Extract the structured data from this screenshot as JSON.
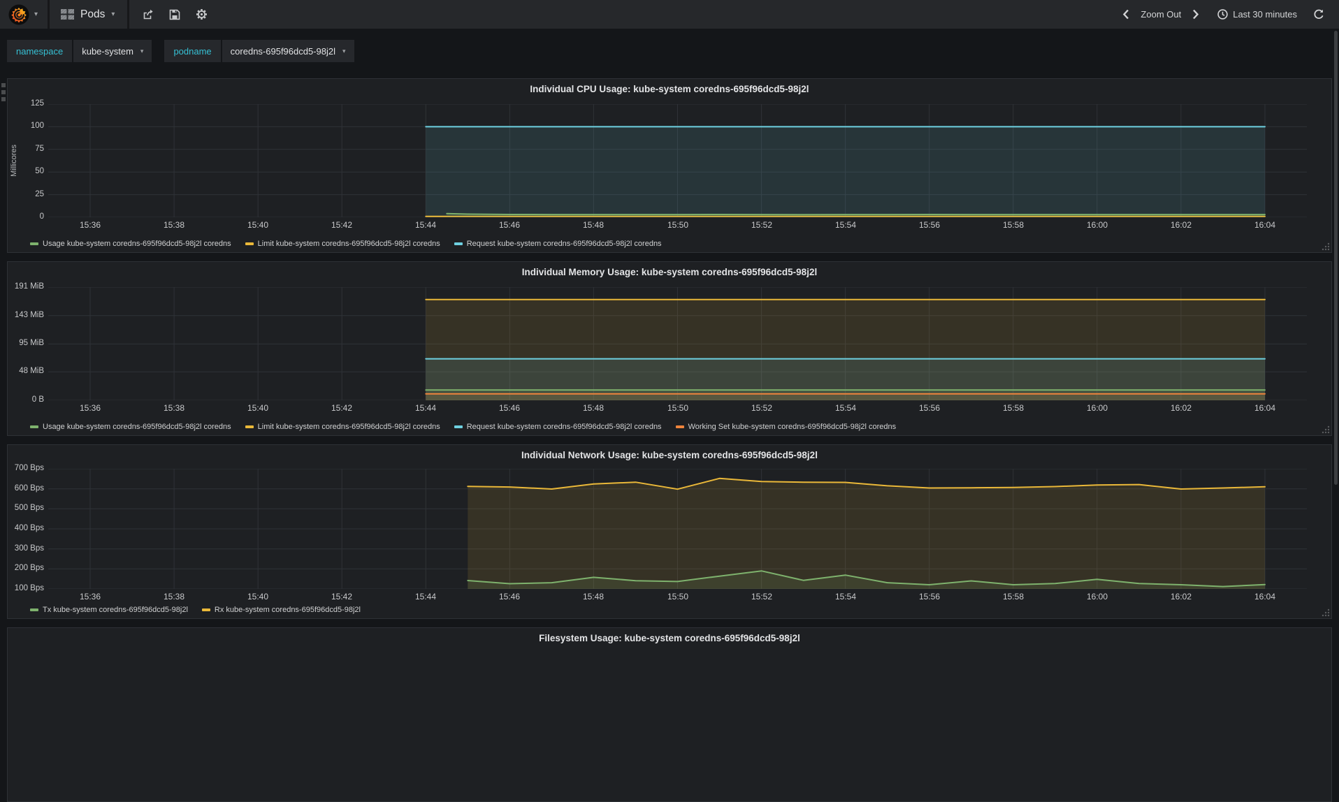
{
  "nav": {
    "dashboard_title": "Pods",
    "zoom_out_label": "Zoom Out",
    "time_range_label": "Last 30 minutes"
  },
  "variables": {
    "items": [
      {
        "label": "namespace",
        "value": "kube-system"
      },
      {
        "label": "podname",
        "value": "coredns-695f96dcd5-98j2l"
      }
    ]
  },
  "colors": {
    "green": "#7EB26D",
    "yellow": "#EAB839",
    "cyan": "#6ED0E0",
    "orange": "#EF843C"
  },
  "chart_data": [
    {
      "type": "line",
      "title": "Individual CPU Usage: kube-system coredns-695f96dcd5-98j2l",
      "ylabel": "Millicores",
      "xlim": [
        0,
        30
      ],
      "ylim": [
        0,
        125
      ],
      "grid": true,
      "legend_position": "bottom-left",
      "yticks": {
        "values": [
          0,
          25,
          50,
          75,
          100,
          125
        ],
        "labels": [
          "0",
          "25",
          "50",
          "75",
          "100",
          "125"
        ]
      },
      "xticks": {
        "t": [
          1,
          3,
          5,
          7,
          9,
          11,
          13,
          15,
          17,
          19,
          21,
          23,
          25,
          27,
          29
        ],
        "labels": [
          "15:36",
          "15:38",
          "15:40",
          "15:42",
          "15:44",
          "15:46",
          "15:48",
          "15:50",
          "15:52",
          "15:54",
          "15:56",
          "15:58",
          "16:00",
          "16:02",
          "16:04"
        ]
      },
      "draw_order": [
        2,
        1,
        0
      ],
      "series": [
        {
          "name": "Usage",
          "label": "Usage kube-system coredns-695f96dcd5-98j2l coredns",
          "color": "#7EB26D",
          "points": [
            [
              9.5,
              4
            ],
            [
              10,
              3.5
            ],
            [
              11,
              3.1
            ],
            [
              12,
              3
            ],
            [
              13,
              3
            ],
            [
              14,
              3
            ],
            [
              15,
              3
            ],
            [
              16,
              3.1
            ],
            [
              17,
              3
            ],
            [
              18,
              2.9
            ],
            [
              19,
              3
            ],
            [
              20,
              3
            ],
            [
              21,
              3.1
            ],
            [
              22,
              3
            ],
            [
              23,
              3
            ],
            [
              24,
              3
            ],
            [
              25,
              3
            ],
            [
              26,
              3
            ],
            [
              27,
              3
            ],
            [
              28,
              3
            ],
            [
              29,
              3
            ]
          ]
        },
        {
          "name": "Limit",
          "label": "Limit kube-system coredns-695f96dcd5-98j2l coredns",
          "color": "#EAB839",
          "points": [
            [
              9,
              1
            ],
            [
              29,
              1
            ]
          ]
        },
        {
          "name": "Request",
          "label": "Request kube-system coredns-695f96dcd5-98j2l coredns",
          "color": "#6ED0E0",
          "points": [
            [
              9,
              100
            ],
            [
              29,
              100
            ]
          ]
        }
      ]
    },
    {
      "type": "line",
      "title": "Individual Memory Usage: kube-system coredns-695f96dcd5-98j2l",
      "ylabel": "",
      "xlim": [
        0,
        30
      ],
      "ylim": [
        0,
        191
      ],
      "grid": true,
      "legend_position": "bottom-left",
      "yticks": {
        "values": [
          0,
          48,
          95,
          143,
          191
        ],
        "labels": [
          "0 B",
          "48 MiB",
          "95 MiB",
          "143 MiB",
          "191 MiB"
        ]
      },
      "xticks": {
        "t": [
          1,
          3,
          5,
          7,
          9,
          11,
          13,
          15,
          17,
          19,
          21,
          23,
          25,
          27,
          29
        ],
        "labels": [
          "15:36",
          "15:38",
          "15:40",
          "15:42",
          "15:44",
          "15:46",
          "15:48",
          "15:50",
          "15:52",
          "15:54",
          "15:56",
          "15:58",
          "16:00",
          "16:02",
          "16:04"
        ]
      },
      "draw_order": [
        1,
        2,
        0,
        3
      ],
      "series": [
        {
          "name": "Usage",
          "label": "Usage kube-system coredns-695f96dcd5-98j2l coredns",
          "color": "#7EB26D",
          "points": [
            [
              9,
              17.5
            ],
            [
              29,
              17.5
            ]
          ]
        },
        {
          "name": "Limit",
          "label": "Limit kube-system coredns-695f96dcd5-98j2l coredns",
          "color": "#EAB839",
          "points": [
            [
              9,
              170
            ],
            [
              29,
              170
            ]
          ]
        },
        {
          "name": "Request",
          "label": "Request kube-system coredns-695f96dcd5-98j2l coredns",
          "color": "#6ED0E0",
          "points": [
            [
              9,
              70
            ],
            [
              29,
              70
            ]
          ]
        },
        {
          "name": "Working Set",
          "label": "Working Set kube-system coredns-695f96dcd5-98j2l coredns",
          "color": "#EF843C",
          "points": [
            [
              9,
              11
            ],
            [
              29,
              11
            ]
          ]
        }
      ]
    },
    {
      "type": "line",
      "title": "Individual Network Usage: kube-system coredns-695f96dcd5-98j2l",
      "ylabel": "",
      "xlim": [
        0,
        30
      ],
      "ylim": [
        100,
        700
      ],
      "grid": true,
      "legend_position": "bottom-left",
      "yticks": {
        "values": [
          100,
          200,
          300,
          400,
          500,
          600,
          700
        ],
        "labels": [
          "100 Bps",
          "200 Bps",
          "300 Bps",
          "400 Bps",
          "500 Bps",
          "600 Bps",
          "700 Bps"
        ]
      },
      "xticks": {
        "t": [
          1,
          3,
          5,
          7,
          9,
          11,
          13,
          15,
          17,
          19,
          21,
          23,
          25,
          27,
          29
        ],
        "labels": [
          "15:36",
          "15:38",
          "15:40",
          "15:42",
          "15:44",
          "15:46",
          "15:48",
          "15:50",
          "15:52",
          "15:54",
          "15:56",
          "15:58",
          "16:00",
          "16:02",
          "16:04"
        ]
      },
      "draw_order": [
        1,
        0
      ],
      "series": [
        {
          "name": "Tx",
          "label": "Tx kube-system coredns-695f96dcd5-98j2l",
          "color": "#7EB26D",
          "points": [
            [
              10,
              142
            ],
            [
              11,
              126
            ],
            [
              12,
              131
            ],
            [
              13,
              158
            ],
            [
              14,
              141
            ],
            [
              15,
              137
            ],
            [
              16,
              164
            ],
            [
              17,
              190
            ],
            [
              18,
              143
            ],
            [
              19,
              169
            ],
            [
              20,
              131
            ],
            [
              21,
              121
            ],
            [
              22,
              140
            ],
            [
              23,
              121
            ],
            [
              24,
              127
            ],
            [
              25,
              148
            ],
            [
              26,
              127
            ],
            [
              27,
              121
            ],
            [
              28,
              112
            ],
            [
              29,
              122
            ]
          ]
        },
        {
          "name": "Rx",
          "label": "Rx kube-system coredns-695f96dcd5-98j2l",
          "color": "#EAB839",
          "points": [
            [
              10,
              612
            ],
            [
              11,
              609
            ],
            [
              12,
              599
            ],
            [
              13,
              624
            ],
            [
              14,
              633
            ],
            [
              15,
              598
            ],
            [
              16,
              652
            ],
            [
              17,
              636
            ],
            [
              18,
              633
            ],
            [
              19,
              632
            ],
            [
              20,
              615
            ],
            [
              21,
              604
            ],
            [
              22,
              605
            ],
            [
              23,
              607
            ],
            [
              24,
              611
            ],
            [
              25,
              619
            ],
            [
              26,
              621
            ],
            [
              27,
              599
            ],
            [
              28,
              604
            ],
            [
              29,
              610
            ]
          ]
        }
      ]
    },
    {
      "type": "line",
      "title": "Filesystem Usage: kube-system coredns-695f96dcd5-98j2l"
    }
  ]
}
